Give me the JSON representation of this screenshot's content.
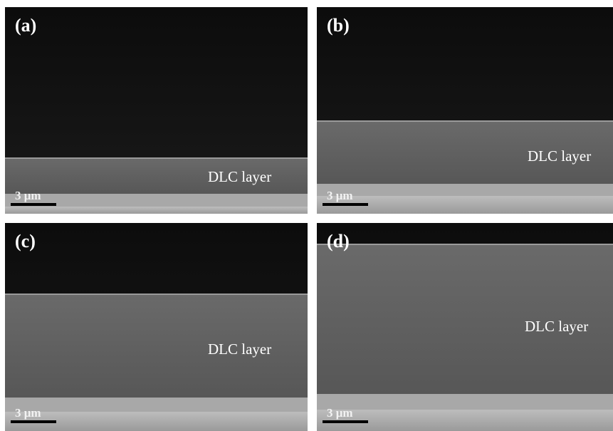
{
  "panels": [
    {
      "label": "(a)",
      "layer_label": "DLC layer",
      "scale_bar": "3 μm"
    },
    {
      "label": "(b)",
      "layer_label": "DLC layer",
      "scale_bar": "3 μm"
    },
    {
      "label": "(c)",
      "layer_label": "DLC layer",
      "scale_bar": "3 μm"
    },
    {
      "label": "(d)",
      "layer_label": "DLC layer",
      "scale_bar": "3 μm"
    }
  ]
}
